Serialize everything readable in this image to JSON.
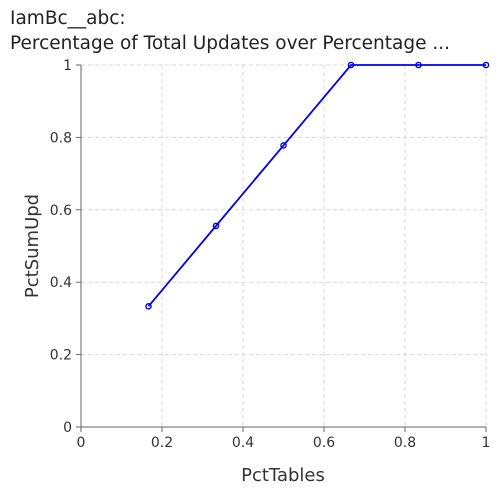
{
  "chart_data": {
    "type": "line",
    "title": "IamBc__abc:",
    "subtitle": "Percentage of Total Updates over Percentage ...",
    "xlabel": "PctTables",
    "ylabel": "PctSumUpd",
    "xlim": [
      0,
      1
    ],
    "ylim": [
      0,
      1
    ],
    "xticks": [
      "0",
      "0.2",
      "0.4",
      "0.6",
      "0.8",
      "1"
    ],
    "yticks": [
      "0",
      "0.2",
      "0.4",
      "0.6",
      "0.8",
      "1"
    ],
    "grid": true,
    "series": [
      {
        "x": [
          0.1667,
          0.3333,
          0.5,
          0.6667,
          0.8333,
          1.0
        ],
        "y": [
          0.3333,
          0.5556,
          0.7778,
          1.0,
          1.0,
          1.0
        ],
        "color": "#0000ee"
      }
    ]
  }
}
